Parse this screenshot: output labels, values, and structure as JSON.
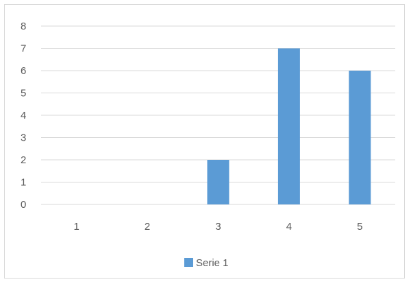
{
  "chart_data": {
    "type": "bar",
    "categories": [
      "1",
      "2",
      "3",
      "4",
      "5"
    ],
    "series": [
      {
        "name": "Serie 1",
        "values": [
          0,
          0,
          2,
          7,
          6
        ]
      }
    ],
    "y_ticks": [
      "0",
      "1",
      "2",
      "3",
      "4",
      "5",
      "6",
      "7",
      "8"
    ],
    "ylim": [
      0,
      8
    ],
    "grid": true,
    "legend_position": "bottom",
    "colors": {
      "bar": "#5b9bd5",
      "grid": "#d9d9d9",
      "axis_text": "#595959"
    }
  }
}
